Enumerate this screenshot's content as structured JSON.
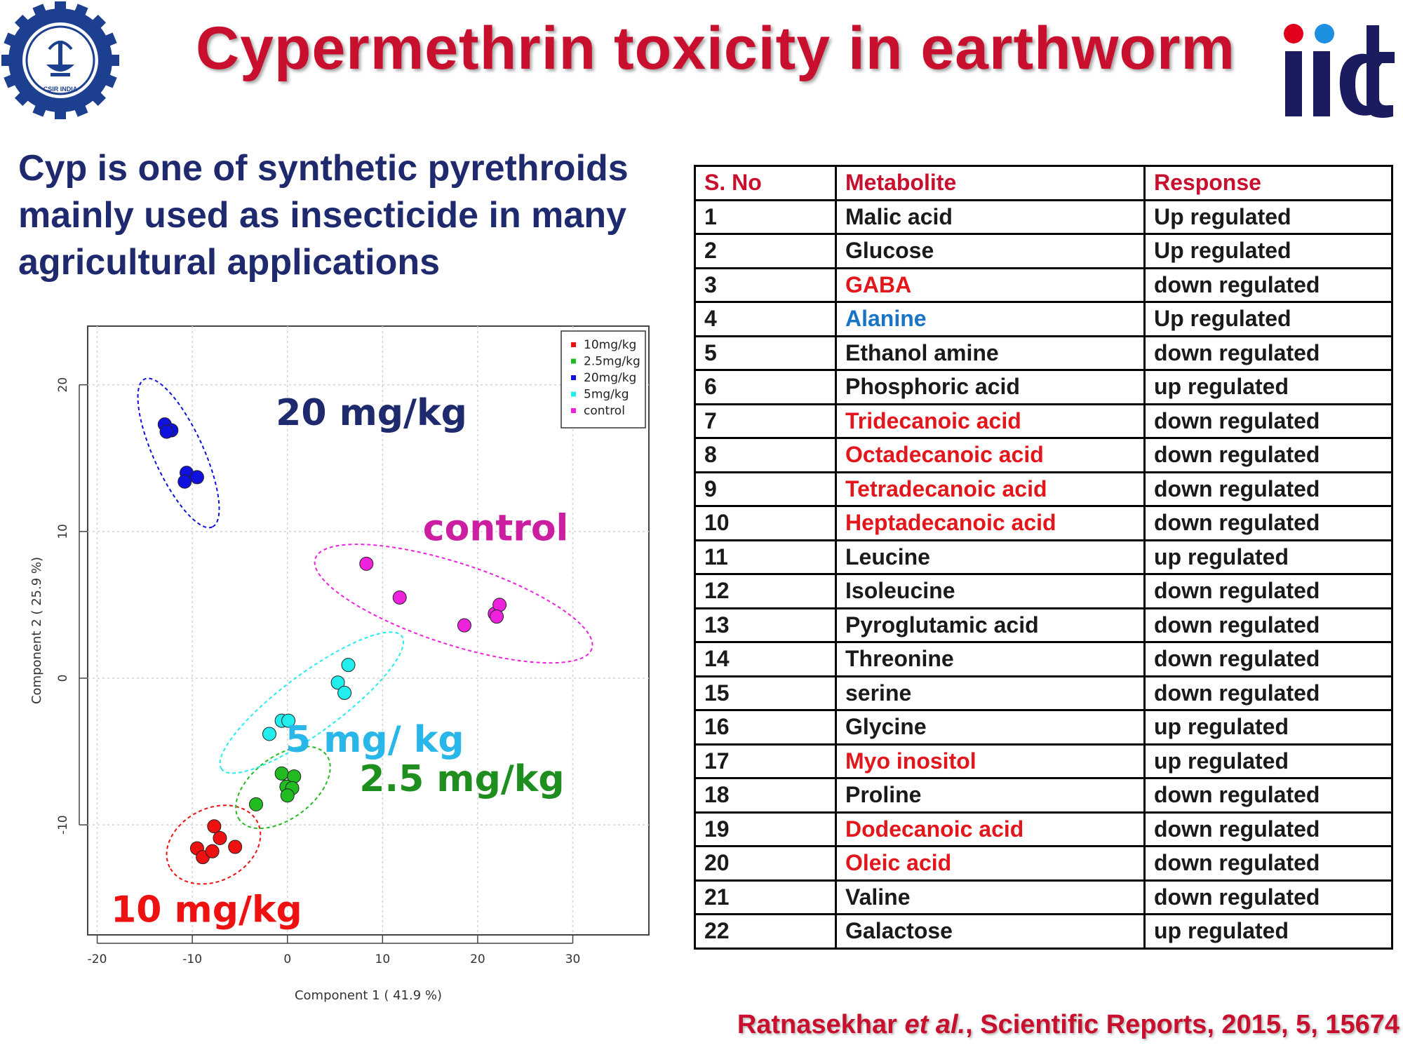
{
  "title": "Cypermethrin toxicity in earthworm",
  "intro": "Cyp is one of synthetic pyrethroids mainly used as insecticide in many agricultural applications",
  "logos": {
    "left_text": "CSIR INDIA",
    "right_text": "iict"
  },
  "chart_data": {
    "type": "scatter",
    "xlabel": "Component 1 ( 41.9 %)",
    "ylabel": "Component 2 ( 25.9 %)",
    "xlim": [
      -21,
      38
    ],
    "ylim": [
      -17.5,
      24
    ],
    "x_ticks": [
      -20,
      -10,
      0,
      10,
      20,
      30
    ],
    "y_ticks": [
      -10,
      0,
      10,
      20
    ],
    "grid": true,
    "legend_position": "top-right",
    "legend": [
      "10mg/kg",
      "2.5mg/kg",
      "20mg/kg",
      "5mg/kg",
      "control"
    ],
    "series": [
      {
        "name": "10mg/kg",
        "color": "#ee1111",
        "label": "10 mg/kg",
        "label_color": "#ee1111",
        "points": [
          [
            -7.7,
            -10.1
          ],
          [
            -9.5,
            -11.6
          ],
          [
            -8.9,
            -12.2
          ],
          [
            -7.9,
            -11.8
          ],
          [
            -7.1,
            -10.9
          ],
          [
            -5.5,
            -11.5
          ]
        ]
      },
      {
        "name": "2.5mg/kg",
        "color": "#22bb22",
        "label": "2.5 mg/kg",
        "label_color": "#1e8e1e",
        "points": [
          [
            -3.3,
            -8.6
          ],
          [
            -0.6,
            -6.5
          ],
          [
            0.7,
            -6.7
          ],
          [
            -0.1,
            -7.4
          ],
          [
            0.5,
            -7.5
          ],
          [
            0.0,
            -8.0
          ]
        ]
      },
      {
        "name": "20mg/kg",
        "color": "#1111dd",
        "label": "20 mg/kg",
        "label_color": "#1f2a6e",
        "points": [
          [
            -12.9,
            17.3
          ],
          [
            -12.2,
            16.9
          ],
          [
            -12.7,
            16.8
          ],
          [
            -10.6,
            14.0
          ],
          [
            -9.5,
            13.7
          ],
          [
            -10.8,
            13.4
          ]
        ]
      },
      {
        "name": "5mg/kg",
        "color": "#22eeee",
        "label": "5 mg/ kg",
        "label_color": "#29b6e8",
        "points": [
          [
            -1.9,
            -3.8
          ],
          [
            -0.6,
            -2.9
          ],
          [
            0.1,
            -2.9
          ],
          [
            5.3,
            -0.3
          ],
          [
            6.0,
            -1.0
          ],
          [
            6.4,
            0.9
          ]
        ]
      },
      {
        "name": "control",
        "color": "#ee22dd",
        "label": "control",
        "label_color": "#cc1ea0",
        "points": [
          [
            8.3,
            7.8
          ],
          [
            11.8,
            5.5
          ],
          [
            18.6,
            3.6
          ],
          [
            21.8,
            4.4
          ],
          [
            22.3,
            5.0
          ],
          [
            22.0,
            4.2
          ]
        ]
      }
    ]
  },
  "table": {
    "headers": [
      "S. No",
      "Metabolite",
      "Response"
    ],
    "rows": [
      {
        "no": "1",
        "metabolite": "Malic acid",
        "response": "Up regulated",
        "highlight": ""
      },
      {
        "no": "2",
        "metabolite": "Glucose",
        "response": "Up regulated",
        "highlight": ""
      },
      {
        "no": "3",
        "metabolite": "GABA",
        "response": "down regulated",
        "highlight": "red"
      },
      {
        "no": "4",
        "metabolite": "Alanine",
        "response": "Up regulated",
        "highlight": "blue"
      },
      {
        "no": "5",
        "metabolite": "Ethanol amine",
        "response": "down regulated",
        "highlight": ""
      },
      {
        "no": "6",
        "metabolite": "Phosphoric acid",
        "response": "up regulated",
        "highlight": ""
      },
      {
        "no": "7",
        "metabolite": "Tridecanoic acid",
        "response": "down regulated",
        "highlight": "red"
      },
      {
        "no": "8",
        "metabolite": "Octadecanoic acid",
        "response": "down regulated",
        "highlight": "red"
      },
      {
        "no": "9",
        "metabolite": "Tetradecanoic acid",
        "response": "down regulated",
        "highlight": "red"
      },
      {
        "no": "10",
        "metabolite": "Heptadecanoic acid",
        "response": "down regulated",
        "highlight": "red"
      },
      {
        "no": "11",
        "metabolite": "Leucine",
        "response": "up regulated",
        "highlight": ""
      },
      {
        "no": "12",
        "metabolite": "Isoleucine",
        "response": "down regulated",
        "highlight": ""
      },
      {
        "no": "13",
        "metabolite": "Pyroglutamic acid",
        "response": "down regulated",
        "highlight": ""
      },
      {
        "no": "14",
        "metabolite": "Threonine",
        "response": "down regulated",
        "highlight": ""
      },
      {
        "no": "15",
        "metabolite": "serine",
        "response": "down regulated",
        "highlight": ""
      },
      {
        "no": "16",
        "metabolite": "Glycine",
        "response": "up regulated",
        "highlight": ""
      },
      {
        "no": "17",
        "metabolite": "Myo inositol",
        "response": "up regulated",
        "highlight": "red"
      },
      {
        "no": "18",
        "metabolite": "Proline",
        "response": "down regulated",
        "highlight": ""
      },
      {
        "no": "19",
        "metabolite": "Dodecanoic acid",
        "response": "down regulated",
        "highlight": "red"
      },
      {
        "no": "20",
        "metabolite": "Oleic acid",
        "response": "down regulated",
        "highlight": "red"
      },
      {
        "no": "21",
        "metabolite": "Valine",
        "response": "down regulated",
        "highlight": ""
      },
      {
        "no": "22",
        "metabolite": "Galactose",
        "response": "up regulated",
        "highlight": ""
      }
    ]
  },
  "citation": {
    "authors": "Ratnasekhar",
    "etal": "et al.",
    "rest": ", Scientific Reports, 2015, 5, 15674"
  }
}
